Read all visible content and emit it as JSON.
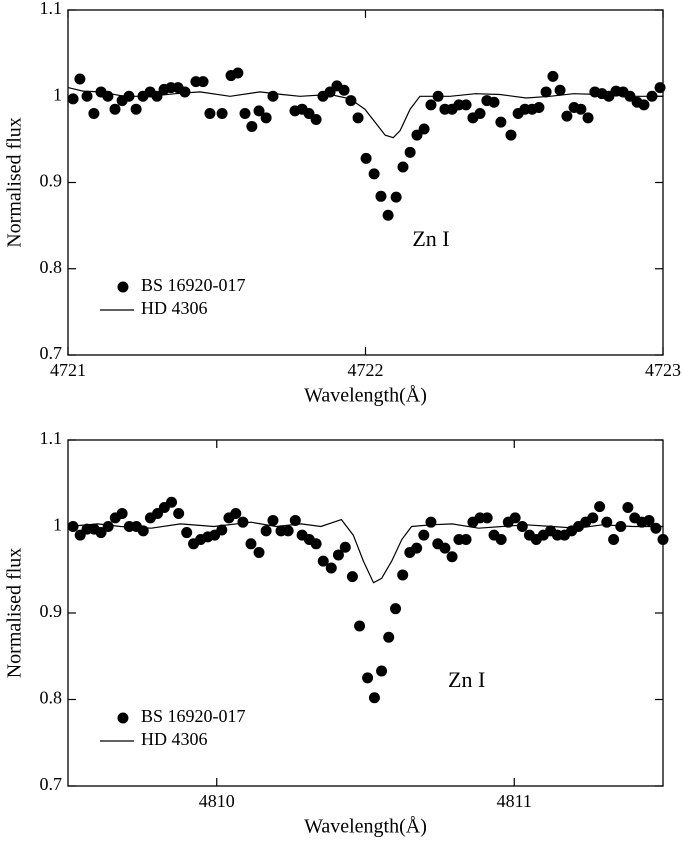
{
  "chart_data": [
    {
      "type": "scatter",
      "xlabel": "Wavelength(Å)",
      "ylabel": "Normalised flux",
      "xlim": [
        4721,
        4723
      ],
      "ylim": [
        0.7,
        1.1
      ],
      "xticks": [
        4721,
        4722,
        4723
      ],
      "yticks": [
        0.7,
        0.8,
        0.9,
        1,
        1.1
      ],
      "annotation": "Zn I",
      "legend": "lower left",
      "series": [
        {
          "name": "BS 16920-017",
          "kind": "dots",
          "color": "#000000",
          "x": [
            4721.017,
            4721.04,
            4721.064,
            4721.087,
            4721.111,
            4721.134,
            4721.158,
            4721.182,
            4721.205,
            4721.229,
            4721.252,
            4721.276,
            4721.299,
            4721.323,
            4721.346,
            4721.37,
            4721.393,
            4721.43,
            4721.454,
            4721.477,
            4721.518,
            4721.548,
            4721.571,
            4721.595,
            4721.618,
            4721.642,
            4721.666,
            4721.689,
            4721.763,
            4721.787,
            4721.81,
            4721.834,
            4721.857,
            4721.881,
            4721.904,
            4721.928,
            4721.951,
            4721.975,
            4722.002,
            4722.029,
            4722.052,
            4722.076,
            4722.103,
            4722.126,
            4722.15,
            4722.173,
            4722.197,
            4722.22,
            4722.244,
            4722.267,
            4722.291,
            4722.314,
            4722.338,
            4722.361,
            4722.385,
            4722.408,
            4722.432,
            4722.455,
            4722.489,
            4722.513,
            4722.536,
            4722.56,
            4722.583,
            4722.607,
            4722.63,
            4722.654,
            4722.677,
            4722.701,
            4722.724,
            4722.748,
            4722.771,
            4722.795,
            4722.818,
            4722.842,
            4722.866,
            4722.889,
            4722.913,
            4722.936,
            4722.963,
            4722.99
          ],
          "values": [
            0.997,
            1.02,
            1.0,
            0.98,
            1.005,
            1.0,
            0.985,
            0.995,
            1.0,
            0.985,
            1.0,
            1.005,
            1.0,
            1.008,
            1.01,
            1.01,
            1.005,
            1.017,
            1.017,
            0.98,
            0.98,
            1.024,
            1.027,
            0.98,
            0.965,
            0.983,
            0.975,
            1.0,
            0.983,
            0.985,
            0.98,
            0.973,
            1.0,
            1.005,
            1.012,
            1.007,
            0.995,
            0.975,
            0.928,
            0.91,
            0.884,
            0.862,
            0.883,
            0.918,
            0.935,
            0.955,
            0.962,
            0.99,
            1.0,
            0.985,
            0.985,
            0.99,
            0.99,
            0.975,
            0.98,
            0.995,
            0.993,
            0.97,
            0.955,
            0.98,
            0.985,
            0.985,
            0.987,
            1.005,
            1.023,
            1.007,
            0.977,
            0.987,
            0.985,
            0.975,
            1.005,
            1.003,
            1.0,
            1.006,
            1.005,
            1.0,
            0.993,
            0.99,
            1.0,
            1.01
          ]
        },
        {
          "name": "HD 4306",
          "kind": "line",
          "color": "#000000",
          "x": [
            4721.0,
            4721.05,
            4721.108,
            4721.19,
            4721.276,
            4721.36,
            4721.444,
            4721.545,
            4721.645,
            4721.72,
            4721.78,
            4721.881,
            4721.948,
            4721.998,
            4722.032,
            4722.066,
            4722.093,
            4722.116,
            4722.15,
            4722.183,
            4722.284,
            4722.37,
            4722.452,
            4722.54,
            4722.62,
            4722.7,
            4722.788,
            4722.9,
            4723.0
          ],
          "values": [
            1.01,
            1.006,
            1.005,
            1.0,
            1.0,
            1.003,
            1.005,
            1.0,
            1.005,
            1.002,
            1.0,
            1.002,
            0.997,
            0.985,
            0.97,
            0.955,
            0.952,
            0.96,
            0.985,
            1.0,
            1.0,
            1.003,
            1.002,
            0.998,
            1.0,
            1.003,
            1.002,
            1.0,
            1.0
          ]
        }
      ]
    },
    {
      "type": "scatter",
      "xlabel": "Wavelength(Å)",
      "ylabel": "Normalised flux",
      "xlim": [
        4809.5,
        4811.5
      ],
      "ylim": [
        0.7,
        1.1
      ],
      "xticks": [
        4810,
        4811
      ],
      "yticks": [
        0.7,
        0.8,
        0.9,
        1,
        1.1
      ],
      "annotation": "Zn I",
      "legend": "lower left",
      "series": [
        {
          "name": "BS 16920-017",
          "kind": "dots",
          "color": "#000000",
          "x": [
            4809.517,
            4809.541,
            4809.564,
            4809.588,
            4809.611,
            4809.635,
            4809.659,
            4809.682,
            4809.706,
            4809.73,
            4809.753,
            4809.777,
            4809.801,
            4809.824,
            4809.848,
            4809.872,
            4809.899,
            4809.922,
            4809.946,
            4809.97,
            4809.993,
            4810.017,
            4810.041,
            4810.064,
            4810.088,
            4810.115,
            4810.142,
            4810.166,
            4810.189,
            4810.216,
            4810.24,
            4810.264,
            4810.287,
            4810.311,
            4810.334,
            4810.358,
            4810.385,
            4810.409,
            4810.432,
            4810.456,
            4810.48,
            4810.507,
            4810.53,
            4810.554,
            4810.578,
            4810.601,
            4810.625,
            4810.649,
            4810.672,
            4810.696,
            4810.72,
            4810.743,
            4810.767,
            4810.791,
            4810.814,
            4810.838,
            4810.861,
            4810.885,
            4810.909,
            4810.932,
            4810.956,
            4810.98,
            4811.003,
            4811.027,
            4811.051,
            4811.074,
            4811.098,
            4811.122,
            4811.145,
            4811.169,
            4811.193,
            4811.216,
            4811.24,
            4811.264,
            4811.287,
            4811.311,
            4811.334,
            4811.358,
            4811.382,
            4811.405,
            4811.429,
            4811.453,
            4811.476,
            4811.5
          ],
          "values": [
            1.0,
            0.99,
            0.997,
            0.997,
            0.993,
            1.0,
            1.01,
            1.015,
            1.0,
            1.0,
            0.995,
            1.01,
            1.015,
            1.022,
            1.028,
            1.015,
            0.993,
            0.98,
            0.985,
            0.988,
            0.99,
            0.996,
            1.01,
            1.015,
            1.005,
            0.98,
            0.97,
            0.995,
            1.007,
            0.995,
            0.995,
            1.007,
            0.99,
            0.985,
            0.98,
            0.96,
            0.952,
            0.967,
            0.976,
            0.942,
            0.885,
            0.825,
            0.802,
            0.833,
            0.872,
            0.905,
            0.944,
            0.97,
            0.975,
            0.99,
            1.005,
            0.98,
            0.975,
            0.965,
            0.985,
            0.985,
            1.005,
            1.01,
            1.01,
            0.99,
            0.985,
            1.005,
            1.01,
            1.0,
            0.99,
            0.985,
            0.99,
            0.995,
            0.99,
            0.99,
            0.995,
            1.0,
            1.005,
            1.01,
            1.023,
            1.005,
            0.985,
            1.0,
            1.022,
            1.01,
            1.005,
            1.007,
            0.998,
            0.985
          ]
        },
        {
          "name": "HD 4306",
          "kind": "line",
          "color": "#000000",
          "x": [
            4809.5,
            4809.6,
            4809.676,
            4809.78,
            4809.878,
            4809.99,
            4810.115,
            4810.2,
            4810.284,
            4810.35,
            4810.419,
            4810.459,
            4810.493,
            4810.527,
            4810.554,
            4810.588,
            4810.622,
            4810.655,
            4810.72,
            4810.791,
            4810.88,
            4810.959,
            4811.04,
            4811.128,
            4811.21,
            4811.297,
            4811.4,
            4811.5
          ],
          "values": [
            1.0,
            1.003,
            1.0,
            0.998,
            1.003,
            1.0,
            1.005,
            1.0,
            1.003,
            1.0,
            1.008,
            0.99,
            0.96,
            0.935,
            0.94,
            0.96,
            0.985,
            1.0,
            1.002,
            1.003,
            0.998,
            1.0,
            1.002,
            1.0,
            0.998,
            1.002,
            1.0,
            1.0
          ]
        }
      ]
    }
  ]
}
